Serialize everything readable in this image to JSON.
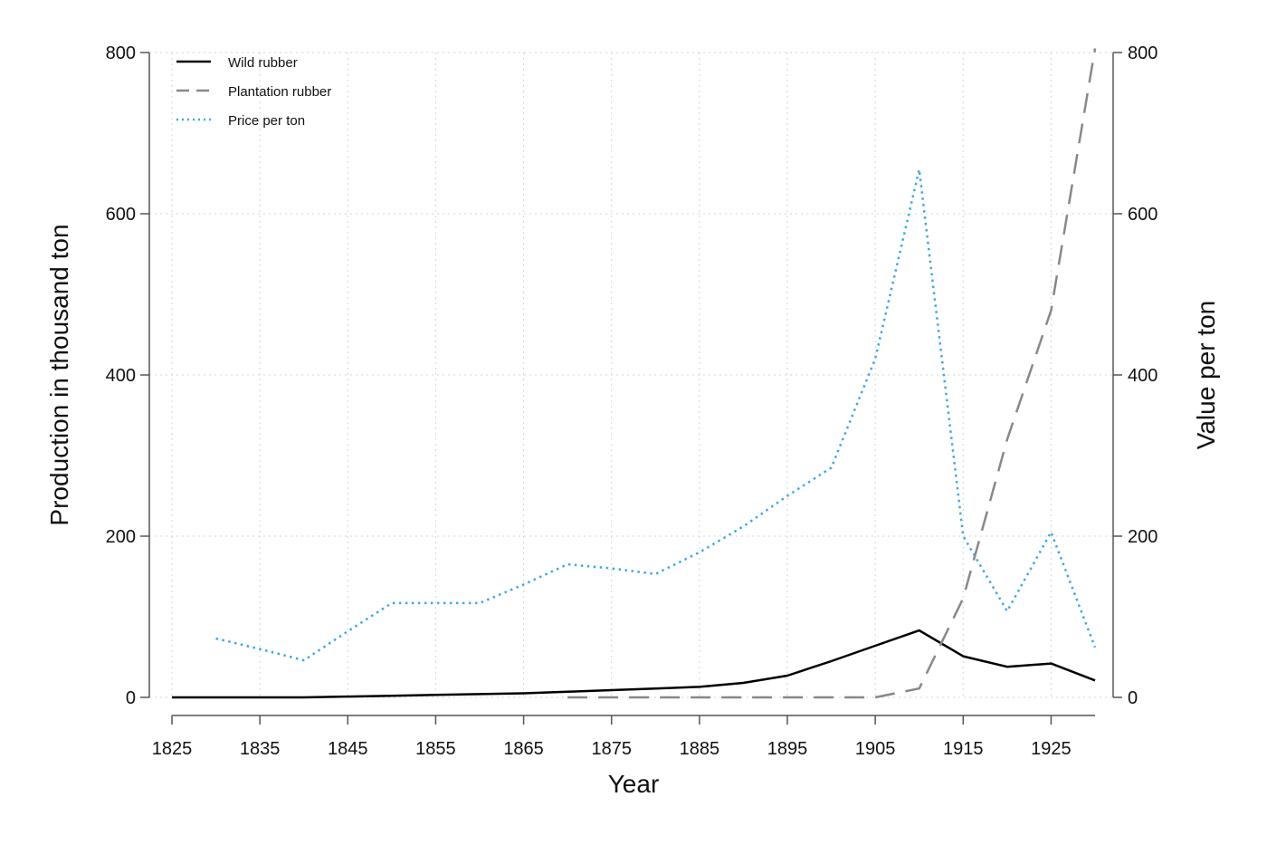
{
  "chart_data": {
    "type": "line",
    "xlabel": "Year",
    "ylabel": "Production in thousand ton",
    "y2label": "Value per ton",
    "xlim": [
      1825,
      1930
    ],
    "ylim": [
      0,
      800
    ],
    "y2lim": [
      0,
      800
    ],
    "xticks": [
      1825,
      1835,
      1845,
      1855,
      1865,
      1875,
      1885,
      1895,
      1905,
      1915,
      1925
    ],
    "yticks": [
      0,
      200,
      400,
      600,
      800
    ],
    "y2ticks": [
      0,
      200,
      400,
      600,
      800
    ],
    "grid": true,
    "legend_position": "top-left",
    "series": [
      {
        "name": "Wild rubber",
        "axis": "left",
        "color": "#000000",
        "style": "solid",
        "x": [
          1825,
          1830,
          1835,
          1840,
          1845,
          1850,
          1855,
          1860,
          1865,
          1870,
          1875,
          1880,
          1885,
          1890,
          1895,
          1900,
          1905,
          1910,
          1915,
          1920,
          1925,
          1930
        ],
        "values": [
          0,
          0,
          0,
          0,
          1,
          2,
          3,
          4,
          5,
          7,
          9,
          11,
          13,
          18,
          27,
          45,
          64,
          83,
          51,
          38,
          42,
          21
        ]
      },
      {
        "name": "Plantation rubber",
        "axis": "left",
        "color": "#888888",
        "style": "dashed",
        "x": [
          1870,
          1875,
          1880,
          1885,
          1890,
          1895,
          1900,
          1905,
          1910,
          1915,
          1920,
          1925,
          1930
        ],
        "values": [
          0,
          0,
          0,
          0,
          0,
          0,
          0,
          0,
          11,
          123,
          320,
          480,
          805
        ]
      },
      {
        "name": "Price per ton",
        "axis": "right",
        "color": "#3ba9e6",
        "style": "dotted",
        "x": [
          1830,
          1835,
          1840,
          1845,
          1850,
          1855,
          1860,
          1865,
          1870,
          1875,
          1880,
          1885,
          1890,
          1895,
          1900,
          1905,
          1910,
          1915,
          1920,
          1925,
          1930
        ],
        "values": [
          73,
          60,
          46,
          82,
          117,
          117,
          117,
          140,
          165,
          160,
          153,
          180,
          212,
          250,
          285,
          420,
          655,
          200,
          107,
          205,
          62
        ]
      }
    ]
  }
}
